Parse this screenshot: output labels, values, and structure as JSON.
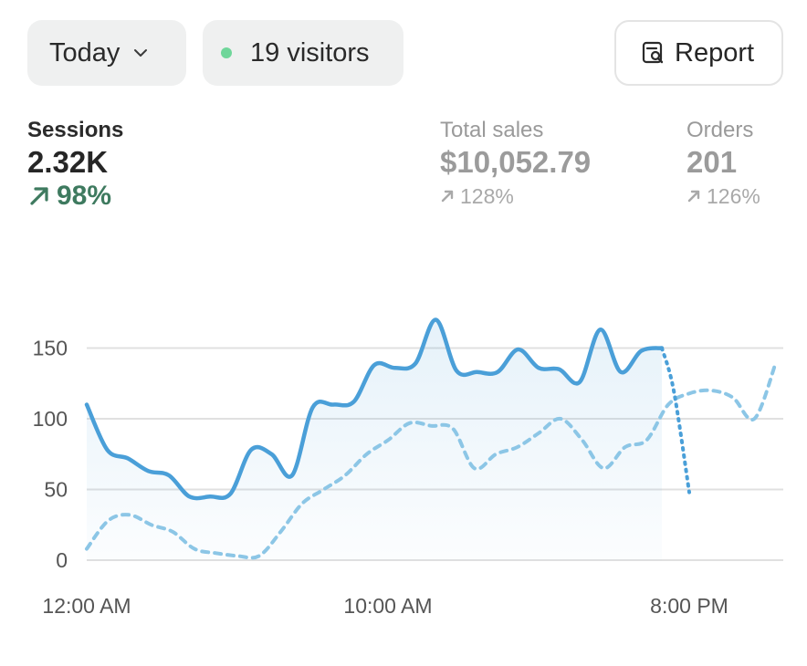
{
  "controls": {
    "period_label": "Today",
    "visitors_label": "19 visitors",
    "report_label": "Report"
  },
  "metrics": [
    {
      "label": "Sessions",
      "value": "2.32K",
      "change": "98%"
    },
    {
      "label": "Total sales",
      "value": "$10,052.79",
      "change": "128%"
    },
    {
      "label": "Orders",
      "value": "201",
      "change": "126%"
    }
  ],
  "colors": {
    "primary_series": "#4a9fd8",
    "comparison_series": "#8cc6e6",
    "positive_delta": "#3e7a5f",
    "live_dot": "#6fd69a"
  },
  "icons": {
    "period": "chevron-down-icon",
    "visitors": "live-dot-icon",
    "report": "report-search-icon",
    "delta": "arrow-up-right-icon"
  },
  "chart_data": {
    "type": "line",
    "x_ticks": [
      "12:00 AM",
      "10:00 AM",
      "8:00 PM"
    ],
    "y_ticks": [
      "0",
      "50",
      "100",
      "150"
    ],
    "ylim": [
      0,
      170
    ],
    "grid": true,
    "series": [
      {
        "role": "current",
        "style": "solid",
        "values": [
          110,
          78,
          72,
          63,
          60,
          45,
          45,
          47,
          78,
          75,
          60,
          108,
          110,
          112,
          138,
          136,
          139,
          170,
          134,
          133,
          133,
          149,
          136,
          135,
          126,
          163,
          133,
          148,
          150
        ],
        "projection": [
          150,
          120,
          48
        ]
      },
      {
        "role": "comparison",
        "style": "dotted",
        "values": [
          8,
          28,
          32,
          25,
          20,
          8,
          5,
          3,
          3,
          20,
          40,
          50,
          60,
          75,
          85,
          97,
          95,
          93,
          65,
          75,
          80,
          90,
          100,
          85,
          65,
          80,
          85,
          110,
          118,
          120,
          115,
          100,
          140
        ]
      }
    ]
  }
}
